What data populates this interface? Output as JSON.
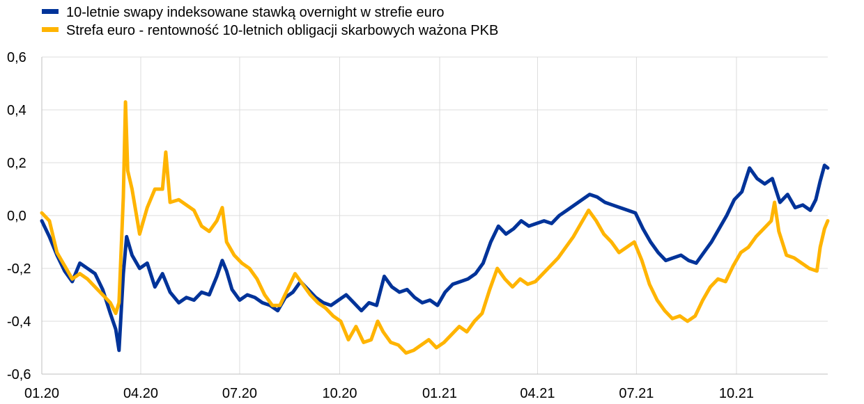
{
  "chart_data": {
    "type": "line",
    "title": "",
    "xlabel": "",
    "ylabel": "",
    "ylim": [
      -0.6,
      0.6
    ],
    "yticks": [
      -0.6,
      -0.4,
      -0.2,
      0.0,
      0.2,
      0.4,
      0.6
    ],
    "ytick_labels": [
      "-0,6",
      "-0,4",
      "-0,2",
      "0,0",
      "0,2",
      "0,4",
      "0,6"
    ],
    "xlim": [
      "2020-01-01",
      "2021-12-24"
    ],
    "xticks": [
      "2020-01-01",
      "2020-04-01",
      "2020-07-01",
      "2020-10-01",
      "2021-01-01",
      "2021-04-01",
      "2021-07-01",
      "2021-10-01"
    ],
    "xtick_labels": [
      "01.20",
      "04.20",
      "07.20",
      "10.20",
      "01.21",
      "04.21",
      "07.21",
      "10.21"
    ],
    "grid": "vertical at x ticks, horizontal at y ticks",
    "legend_position": "top-left",
    "series": [
      {
        "name": "10-letnie swapy indeksowane stawką overnight w strefie euro",
        "color": "#003399",
        "points": [
          [
            "2020-01-01",
            -0.02
          ],
          [
            "2020-01-08",
            -0.08
          ],
          [
            "2020-01-15",
            -0.15
          ],
          [
            "2020-01-22",
            -0.21
          ],
          [
            "2020-01-29",
            -0.25
          ],
          [
            "2020-02-05",
            -0.18
          ],
          [
            "2020-02-12",
            -0.2
          ],
          [
            "2020-02-19",
            -0.22
          ],
          [
            "2020-02-26",
            -0.28
          ],
          [
            "2020-03-04",
            -0.37
          ],
          [
            "2020-03-09",
            -0.43
          ],
          [
            "2020-03-12",
            -0.51
          ],
          [
            "2020-03-16",
            -0.22
          ],
          [
            "2020-03-19",
            -0.08
          ],
          [
            "2020-03-24",
            -0.15
          ],
          [
            "2020-03-31",
            -0.2
          ],
          [
            "2020-04-07",
            -0.18
          ],
          [
            "2020-04-14",
            -0.27
          ],
          [
            "2020-04-21",
            -0.22
          ],
          [
            "2020-04-28",
            -0.29
          ],
          [
            "2020-05-06",
            -0.33
          ],
          [
            "2020-05-13",
            -0.31
          ],
          [
            "2020-05-20",
            -0.32
          ],
          [
            "2020-05-27",
            -0.29
          ],
          [
            "2020-06-03",
            -0.3
          ],
          [
            "2020-06-10",
            -0.23
          ],
          [
            "2020-06-15",
            -0.17
          ],
          [
            "2020-06-19",
            -0.21
          ],
          [
            "2020-06-24",
            -0.28
          ],
          [
            "2020-07-01",
            -0.32
          ],
          [
            "2020-07-08",
            -0.3
          ],
          [
            "2020-07-15",
            -0.31
          ],
          [
            "2020-07-22",
            -0.33
          ],
          [
            "2020-07-29",
            -0.34
          ],
          [
            "2020-08-05",
            -0.36
          ],
          [
            "2020-08-12",
            -0.31
          ],
          [
            "2020-08-19",
            -0.29
          ],
          [
            "2020-08-26",
            -0.25
          ],
          [
            "2020-09-02",
            -0.28
          ],
          [
            "2020-09-09",
            -0.31
          ],
          [
            "2020-09-16",
            -0.33
          ],
          [
            "2020-09-23",
            -0.34
          ],
          [
            "2020-09-30",
            -0.32
          ],
          [
            "2020-10-07",
            -0.3
          ],
          [
            "2020-10-14",
            -0.33
          ],
          [
            "2020-10-21",
            -0.36
          ],
          [
            "2020-10-28",
            -0.33
          ],
          [
            "2020-11-04",
            -0.34
          ],
          [
            "2020-11-11",
            -0.23
          ],
          [
            "2020-11-18",
            -0.27
          ],
          [
            "2020-11-25",
            -0.29
          ],
          [
            "2020-12-02",
            -0.28
          ],
          [
            "2020-12-09",
            -0.31
          ],
          [
            "2020-12-16",
            -0.33
          ],
          [
            "2020-12-23",
            -0.32
          ],
          [
            "2020-12-30",
            -0.34
          ],
          [
            "2021-01-06",
            -0.29
          ],
          [
            "2021-01-13",
            -0.26
          ],
          [
            "2021-01-20",
            -0.25
          ],
          [
            "2021-01-27",
            -0.24
          ],
          [
            "2021-02-03",
            -0.22
          ],
          [
            "2021-02-10",
            -0.18
          ],
          [
            "2021-02-17",
            -0.1
          ],
          [
            "2021-02-24",
            -0.04
          ],
          [
            "2021-03-03",
            -0.07
          ],
          [
            "2021-03-10",
            -0.05
          ],
          [
            "2021-03-17",
            -0.02
          ],
          [
            "2021-03-24",
            -0.04
          ],
          [
            "2021-03-31",
            -0.03
          ],
          [
            "2021-04-07",
            -0.02
          ],
          [
            "2021-04-14",
            -0.03
          ],
          [
            "2021-04-21",
            0.0
          ],
          [
            "2021-04-28",
            0.02
          ],
          [
            "2021-05-05",
            0.04
          ],
          [
            "2021-05-12",
            0.06
          ],
          [
            "2021-05-19",
            0.08
          ],
          [
            "2021-05-26",
            0.07
          ],
          [
            "2021-06-02",
            0.05
          ],
          [
            "2021-06-09",
            0.04
          ],
          [
            "2021-06-16",
            0.03
          ],
          [
            "2021-06-23",
            0.02
          ],
          [
            "2021-06-30",
            0.01
          ],
          [
            "2021-07-07",
            -0.05
          ],
          [
            "2021-07-14",
            -0.1
          ],
          [
            "2021-07-21",
            -0.14
          ],
          [
            "2021-07-28",
            -0.17
          ],
          [
            "2021-08-04",
            -0.16
          ],
          [
            "2021-08-11",
            -0.15
          ],
          [
            "2021-08-18",
            -0.17
          ],
          [
            "2021-08-25",
            -0.18
          ],
          [
            "2021-09-01",
            -0.14
          ],
          [
            "2021-09-08",
            -0.1
          ],
          [
            "2021-09-15",
            -0.05
          ],
          [
            "2021-09-22",
            0.0
          ],
          [
            "2021-09-29",
            0.06
          ],
          [
            "2021-10-06",
            0.09
          ],
          [
            "2021-10-13",
            0.18
          ],
          [
            "2021-10-20",
            0.14
          ],
          [
            "2021-10-27",
            0.12
          ],
          [
            "2021-11-03",
            0.14
          ],
          [
            "2021-11-10",
            0.05
          ],
          [
            "2021-11-17",
            0.08
          ],
          [
            "2021-11-24",
            0.03
          ],
          [
            "2021-12-01",
            0.04
          ],
          [
            "2021-12-08",
            0.02
          ],
          [
            "2021-12-13",
            0.06
          ],
          [
            "2021-12-17",
            0.13
          ],
          [
            "2021-12-21",
            0.19
          ],
          [
            "2021-12-24",
            0.18
          ]
        ]
      },
      {
        "name": "Strefa euro - rentowność 10-letnich obligacji skarbowych ważona PKB",
        "color": "#FFB400",
        "points": [
          [
            "2020-01-01",
            0.01
          ],
          [
            "2020-01-08",
            -0.02
          ],
          [
            "2020-01-15",
            -0.14
          ],
          [
            "2020-01-22",
            -0.19
          ],
          [
            "2020-01-29",
            -0.24
          ],
          [
            "2020-02-05",
            -0.22
          ],
          [
            "2020-02-12",
            -0.24
          ],
          [
            "2020-02-19",
            -0.27
          ],
          [
            "2020-02-26",
            -0.3
          ],
          [
            "2020-03-04",
            -0.33
          ],
          [
            "2020-03-09",
            -0.37
          ],
          [
            "2020-03-12",
            -0.33
          ],
          [
            "2020-03-16",
            0.07
          ],
          [
            "2020-03-18",
            0.43
          ],
          [
            "2020-03-20",
            0.17
          ],
          [
            "2020-03-24",
            0.1
          ],
          [
            "2020-03-31",
            -0.07
          ],
          [
            "2020-04-07",
            0.03
          ],
          [
            "2020-04-14",
            0.1
          ],
          [
            "2020-04-21",
            0.1
          ],
          [
            "2020-04-24",
            0.24
          ],
          [
            "2020-04-28",
            0.05
          ],
          [
            "2020-05-06",
            0.06
          ],
          [
            "2020-05-13",
            0.04
          ],
          [
            "2020-05-20",
            0.02
          ],
          [
            "2020-05-27",
            -0.04
          ],
          [
            "2020-06-03",
            -0.06
          ],
          [
            "2020-06-10",
            -0.02
          ],
          [
            "2020-06-15",
            0.03
          ],
          [
            "2020-06-19",
            -0.1
          ],
          [
            "2020-06-26",
            -0.15
          ],
          [
            "2020-07-03",
            -0.18
          ],
          [
            "2020-07-10",
            -0.2
          ],
          [
            "2020-07-17",
            -0.24
          ],
          [
            "2020-07-24",
            -0.3
          ],
          [
            "2020-07-31",
            -0.34
          ],
          [
            "2020-08-07",
            -0.34
          ],
          [
            "2020-08-14",
            -0.28
          ],
          [
            "2020-08-21",
            -0.22
          ],
          [
            "2020-08-28",
            -0.26
          ],
          [
            "2020-09-04",
            -0.3
          ],
          [
            "2020-09-11",
            -0.33
          ],
          [
            "2020-09-18",
            -0.35
          ],
          [
            "2020-09-25",
            -0.38
          ],
          [
            "2020-10-02",
            -0.4
          ],
          [
            "2020-10-09",
            -0.47
          ],
          [
            "2020-10-16",
            -0.42
          ],
          [
            "2020-10-23",
            -0.48
          ],
          [
            "2020-10-30",
            -0.47
          ],
          [
            "2020-11-05",
            -0.4
          ],
          [
            "2020-11-10",
            -0.44
          ],
          [
            "2020-11-17",
            -0.48
          ],
          [
            "2020-11-24",
            -0.49
          ],
          [
            "2020-12-01",
            -0.52
          ],
          [
            "2020-12-08",
            -0.51
          ],
          [
            "2020-12-15",
            -0.49
          ],
          [
            "2020-12-22",
            -0.47
          ],
          [
            "2020-12-29",
            -0.5
          ],
          [
            "2021-01-05",
            -0.48
          ],
          [
            "2021-01-12",
            -0.45
          ],
          [
            "2021-01-19",
            -0.42
          ],
          [
            "2021-01-26",
            -0.44
          ],
          [
            "2021-02-02",
            -0.4
          ],
          [
            "2021-02-09",
            -0.37
          ],
          [
            "2021-02-16",
            -0.28
          ],
          [
            "2021-02-23",
            -0.2
          ],
          [
            "2021-03-02",
            -0.24
          ],
          [
            "2021-03-09",
            -0.27
          ],
          [
            "2021-03-16",
            -0.24
          ],
          [
            "2021-03-23",
            -0.26
          ],
          [
            "2021-03-30",
            -0.25
          ],
          [
            "2021-04-06",
            -0.22
          ],
          [
            "2021-04-13",
            -0.19
          ],
          [
            "2021-04-20",
            -0.16
          ],
          [
            "2021-04-27",
            -0.12
          ],
          [
            "2021-05-04",
            -0.08
          ],
          [
            "2021-05-11",
            -0.03
          ],
          [
            "2021-05-18",
            0.02
          ],
          [
            "2021-05-25",
            -0.02
          ],
          [
            "2021-06-01",
            -0.07
          ],
          [
            "2021-06-08",
            -0.1
          ],
          [
            "2021-06-15",
            -0.14
          ],
          [
            "2021-06-22",
            -0.12
          ],
          [
            "2021-06-29",
            -0.1
          ],
          [
            "2021-07-06",
            -0.17
          ],
          [
            "2021-07-13",
            -0.26
          ],
          [
            "2021-07-20",
            -0.32
          ],
          [
            "2021-07-27",
            -0.36
          ],
          [
            "2021-08-03",
            -0.39
          ],
          [
            "2021-08-10",
            -0.38
          ],
          [
            "2021-08-17",
            -0.4
          ],
          [
            "2021-08-24",
            -0.38
          ],
          [
            "2021-08-31",
            -0.32
          ],
          [
            "2021-09-07",
            -0.27
          ],
          [
            "2021-09-14",
            -0.24
          ],
          [
            "2021-09-21",
            -0.25
          ],
          [
            "2021-09-28",
            -0.19
          ],
          [
            "2021-10-05",
            -0.14
          ],
          [
            "2021-10-12",
            -0.12
          ],
          [
            "2021-10-19",
            -0.08
          ],
          [
            "2021-10-26",
            -0.05
          ],
          [
            "2021-11-02",
            -0.02
          ],
          [
            "2021-11-05",
            0.05
          ],
          [
            "2021-11-09",
            -0.06
          ],
          [
            "2021-11-16",
            -0.15
          ],
          [
            "2021-11-23",
            -0.16
          ],
          [
            "2021-11-30",
            -0.18
          ],
          [
            "2021-12-07",
            -0.2
          ],
          [
            "2021-12-14",
            -0.21
          ],
          [
            "2021-12-17",
            -0.12
          ],
          [
            "2021-12-21",
            -0.05
          ],
          [
            "2021-12-24",
            -0.02
          ]
        ]
      }
    ]
  }
}
